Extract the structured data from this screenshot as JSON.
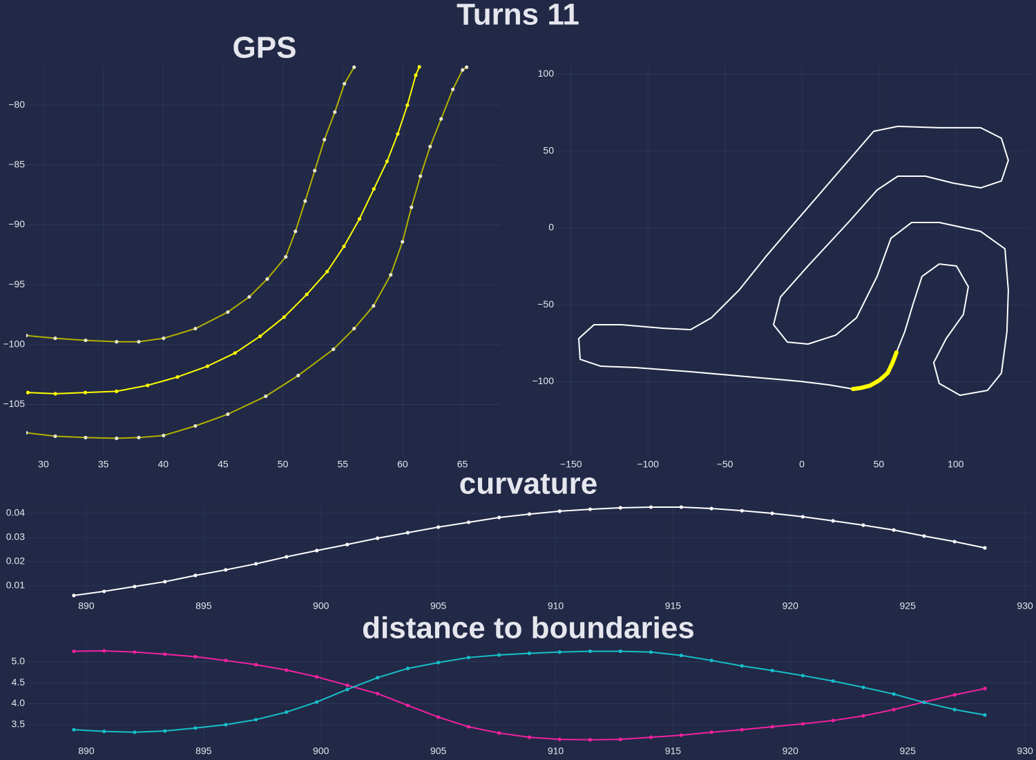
{
  "title": "Turns 11",
  "chart_data": [
    {
      "type": "line",
      "title": "GPS",
      "grid": true,
      "xlim": [
        28.56,
        68.2
      ],
      "ylim": [
        -109.3,
        -76.7
      ],
      "xticks": [
        30,
        35,
        40,
        45,
        50,
        55,
        60,
        65
      ],
      "yticks": [
        {
          "value": -80,
          "label": "−80"
        },
        {
          "value": -85,
          "label": "−85"
        },
        {
          "value": -90,
          "label": "−90"
        },
        {
          "value": -95,
          "label": "−95"
        },
        {
          "value": -100,
          "label": "−100"
        },
        {
          "value": -105,
          "label": "−105"
        }
      ],
      "series": [
        {
          "color": "#b2b200",
          "marker_color": "#e8e8d0",
          "markers": true,
          "x": [
            28.56,
            30.98,
            33.52,
            36.11,
            37.96,
            40.03,
            42.69,
            45.4,
            47.19,
            48.69,
            50.24,
            51.05,
            51.86,
            52.66,
            53.47,
            54.34,
            55.14,
            55.95
          ],
          "values": [
            -99.24,
            -99.47,
            -99.64,
            -99.76,
            -99.76,
            -99.47,
            -98.66,
            -97.28,
            -96.01,
            -94.52,
            -92.67,
            -90.54,
            -88.01,
            -85.47,
            -82.88,
            -80.58,
            -78.21,
            -76.83
          ]
        },
        {
          "color": "#ffff00",
          "marker_color": "#ffff00",
          "markers": true,
          "x": [
            28.7,
            31.0,
            33.5,
            36.1,
            38.7,
            41.2,
            43.7,
            46.0,
            48.1,
            50.1,
            52.0,
            53.7,
            55.1,
            56.4,
            57.6,
            58.7,
            59.6,
            60.4,
            61.1,
            61.4
          ],
          "values": [
            -104.0,
            -104.1,
            -104.0,
            -103.9,
            -103.4,
            -102.7,
            -101.8,
            -100.7,
            -99.3,
            -97.7,
            -95.8,
            -93.9,
            -91.8,
            -89.5,
            -87.0,
            -84.7,
            -82.4,
            -80.0,
            -77.5,
            -76.8
          ]
        },
        {
          "color": "#b2b200",
          "marker_color": "#e8e8d0",
          "markers": true,
          "x": [
            28.56,
            30.98,
            33.52,
            36.11,
            37.96,
            40.03,
            42.69,
            45.4,
            48.57,
            51.28,
            54.22,
            55.95,
            57.57,
            59.01,
            59.99,
            60.74,
            61.49,
            62.3,
            63.22,
            64.2,
            65.01,
            65.35
          ],
          "values": [
            -107.36,
            -107.65,
            -107.76,
            -107.82,
            -107.76,
            -107.59,
            -106.79,
            -105.81,
            -104.31,
            -102.58,
            -100.39,
            -98.66,
            -96.76,
            -94.17,
            -91.41,
            -88.53,
            -85.93,
            -83.46,
            -81.15,
            -78.68,
            -77.06,
            -76.83
          ]
        }
      ]
    },
    {
      "type": "line",
      "grid": true,
      "xlim": [
        -159.8,
        147.7
      ],
      "ylim": [
        -148.3,
        105.6
      ],
      "xticks": [
        {
          "value": -150,
          "label": "−150"
        },
        {
          "value": -100,
          "label": "−100"
        },
        {
          "value": -50,
          "label": "−50"
        },
        0,
        50,
        100
      ],
      "yticks": [
        {
          "value": -100,
          "label": "−100"
        },
        {
          "value": -50,
          "label": "−50"
        },
        0,
        50,
        100
      ],
      "series": [
        {
          "color": "#ffffff",
          "markers": false,
          "width": 2,
          "x": [
            -4.9,
            46.7,
            62.4,
            89.3,
            116.2,
            129.7,
            134.2,
            129.7,
            116.2,
            98.3,
            80.3,
            62.4,
            48.9,
            31.0,
            4.0,
            -13.9,
            -18.4,
            -9.4,
            4.0,
            22.0,
            35.5,
            48.9,
            57.9,
            71.4,
            89.3,
            116.2,
            132.0,
            134.2,
            133.3,
            129.7,
            120.7,
            102.8,
            89.3,
            85.7,
            93.8,
            105.0,
            108.2,
            100.5,
            89.3,
            78.1,
            72.3,
            66.9,
            61.5,
            55.7,
            44.4,
            33.2,
            17.5,
            -0.4,
            -36.4,
            -72.3,
            -108.2,
            -130.7,
            -144.1,
            -145.0,
            -135.1,
            -117.2,
            -90.2,
            -72.3,
            -58.8,
            -40.8,
            -22.9,
            -4.9
          ],
          "values": [
            3.1,
            62.9,
            66.1,
            65.2,
            65.2,
            58.4,
            44.0,
            30.6,
            26.1,
            29.2,
            33.7,
            33.7,
            24.7,
            4.5,
            -24.7,
            -44.9,
            -62.9,
            -74.2,
            -75.5,
            -69.7,
            -58.4,
            -31.5,
            -6.7,
            3.6,
            3.6,
            -2.2,
            -13.5,
            -40.4,
            -67.4,
            -94.4,
            -105.6,
            -108.8,
            -101.1,
            -87.6,
            -71.9,
            -56.2,
            -38.2,
            -24.7,
            -23.4,
            -31.5,
            -49.4,
            -67.4,
            -80.9,
            -94.4,
            -102.5,
            -104.7,
            -102.0,
            -99.8,
            -96.6,
            -93.5,
            -90.8,
            -89.9,
            -85.4,
            -71.9,
            -62.9,
            -62.9,
            -65.2,
            -66.1,
            -58.4,
            -40.4,
            -18.0,
            3.1
          ]
        },
        {
          "color": "#ffff00",
          "markers": false,
          "width": 6,
          "x": [
            61.5,
            58.8,
            55.7,
            50.5,
            44.4,
            38.5,
            33.2
          ],
          "values": [
            -80.9,
            -88.0,
            -94.4,
            -99.0,
            -102.5,
            -104.0,
            -104.7
          ]
        }
      ]
    },
    {
      "type": "line",
      "title": "curvature",
      "grid": true,
      "xlim": [
        887.5,
        930.38
      ],
      "ylim": [
        0.0051,
        0.0443
      ],
      "xticks": [
        890,
        895,
        900,
        905,
        910,
        915,
        920,
        925,
        930
      ],
      "yticks": [
        0.01,
        0.02,
        0.03,
        0.04
      ],
      "series": [
        {
          "color": "#ffffff",
          "marker_color": "#ffffff",
          "markers": true,
          "x": [
            889.47,
            890.76,
            892.06,
            893.35,
            894.65,
            895.94,
            897.23,
            898.53,
            899.82,
            901.12,
            902.41,
            903.7,
            905.0,
            906.29,
            907.59,
            908.88,
            910.17,
            911.47,
            912.76,
            914.06,
            915.35,
            916.64,
            917.94,
            919.23,
            920.53,
            921.82,
            923.11,
            924.41,
            925.7,
            927.0,
            928.29
          ],
          "values": [
            0.006,
            0.0077,
            0.0097,
            0.0117,
            0.0143,
            0.0166,
            0.0191,
            0.022,
            0.0246,
            0.0271,
            0.0297,
            0.032,
            0.0343,
            0.0363,
            0.0383,
            0.0397,
            0.0409,
            0.0417,
            0.0423,
            0.0426,
            0.0426,
            0.042,
            0.0411,
            0.04,
            0.0386,
            0.0369,
            0.0351,
            0.0331,
            0.0306,
            0.0283,
            0.0257
          ]
        }
      ]
    },
    {
      "type": "line",
      "title": "distance to boundaries",
      "grid": true,
      "xlim": [
        887.5,
        930.38
      ],
      "ylim": [
        3.07,
        5.49
      ],
      "xticks": [
        890,
        895,
        900,
        905,
        910,
        915,
        920,
        925,
        930
      ],
      "yticks": [
        {
          "value": 5,
          "label": "5.0"
        },
        4.5,
        {
          "value": 4,
          "label": "4.0"
        },
        3.5
      ],
      "series": [
        {
          "color": "#f321a0",
          "marker_color": "#f321a0",
          "markers": true,
          "x": [
            889.47,
            890.76,
            892.06,
            893.35,
            894.65,
            895.94,
            897.23,
            898.53,
            899.82,
            901.12,
            902.41,
            903.7,
            905.0,
            906.29,
            907.59,
            908.88,
            910.17,
            911.47,
            912.76,
            914.06,
            915.35,
            916.64,
            917.94,
            919.23,
            920.53,
            921.82,
            923.11,
            924.41,
            925.7,
            927.0,
            928.29
          ],
          "values": [
            5.25,
            5.26,
            5.23,
            5.18,
            5.12,
            5.03,
            4.93,
            4.8,
            4.64,
            4.44,
            4.24,
            3.96,
            3.68,
            3.45,
            3.3,
            3.2,
            3.15,
            3.14,
            3.15,
            3.2,
            3.25,
            3.32,
            3.38,
            3.45,
            3.52,
            3.6,
            3.71,
            3.86,
            4.04,
            4.21,
            4.36
          ]
        },
        {
          "color": "#17bfc8",
          "marker_color": "#17bfc8",
          "markers": true,
          "x": [
            889.47,
            890.76,
            892.06,
            893.35,
            894.65,
            895.94,
            897.23,
            898.53,
            899.82,
            901.12,
            902.41,
            903.7,
            905.0,
            906.29,
            907.59,
            908.88,
            910.17,
            911.47,
            912.76,
            914.06,
            915.35,
            916.64,
            917.94,
            919.23,
            920.53,
            921.82,
            923.11,
            924.41,
            925.7,
            927.0,
            928.29
          ],
          "values": [
            3.38,
            3.34,
            3.32,
            3.35,
            3.42,
            3.5,
            3.62,
            3.8,
            4.04,
            4.34,
            4.62,
            4.84,
            4.98,
            5.1,
            5.16,
            5.2,
            5.23,
            5.25,
            5.25,
            5.23,
            5.15,
            5.03,
            4.9,
            4.79,
            4.67,
            4.54,
            4.39,
            4.23,
            4.03,
            3.86,
            3.73
          ]
        }
      ]
    }
  ]
}
